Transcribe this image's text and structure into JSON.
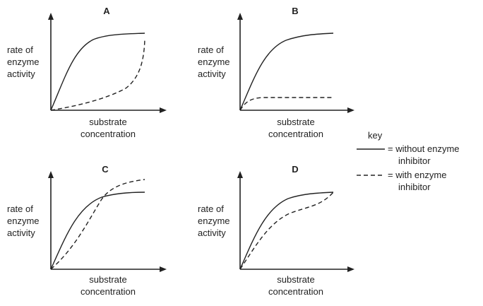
{
  "panels": [
    {
      "title": "A",
      "ylabel": [
        "rate of",
        "enzyme",
        "activity"
      ],
      "xlabel": [
        "substrate",
        "concentration"
      ]
    },
    {
      "title": "B",
      "ylabel": [
        "rate of",
        "enzyme",
        "activity"
      ],
      "xlabel": [
        "substrate",
        "concentration"
      ]
    },
    {
      "title": "C",
      "ylabel": [
        "rate of",
        "enzyme",
        "activity"
      ],
      "xlabel": [
        "substrate",
        "concentration"
      ]
    },
    {
      "title": "D",
      "ylabel": [
        "rate of",
        "enzyme",
        "activity"
      ],
      "xlabel": [
        "substrate",
        "concentration"
      ]
    }
  ],
  "key": {
    "title": "key",
    "solid_label": [
      "= without enzyme",
      "inhibitor"
    ],
    "dashed_label": [
      "= with enzyme",
      "inhibitor"
    ]
  }
}
